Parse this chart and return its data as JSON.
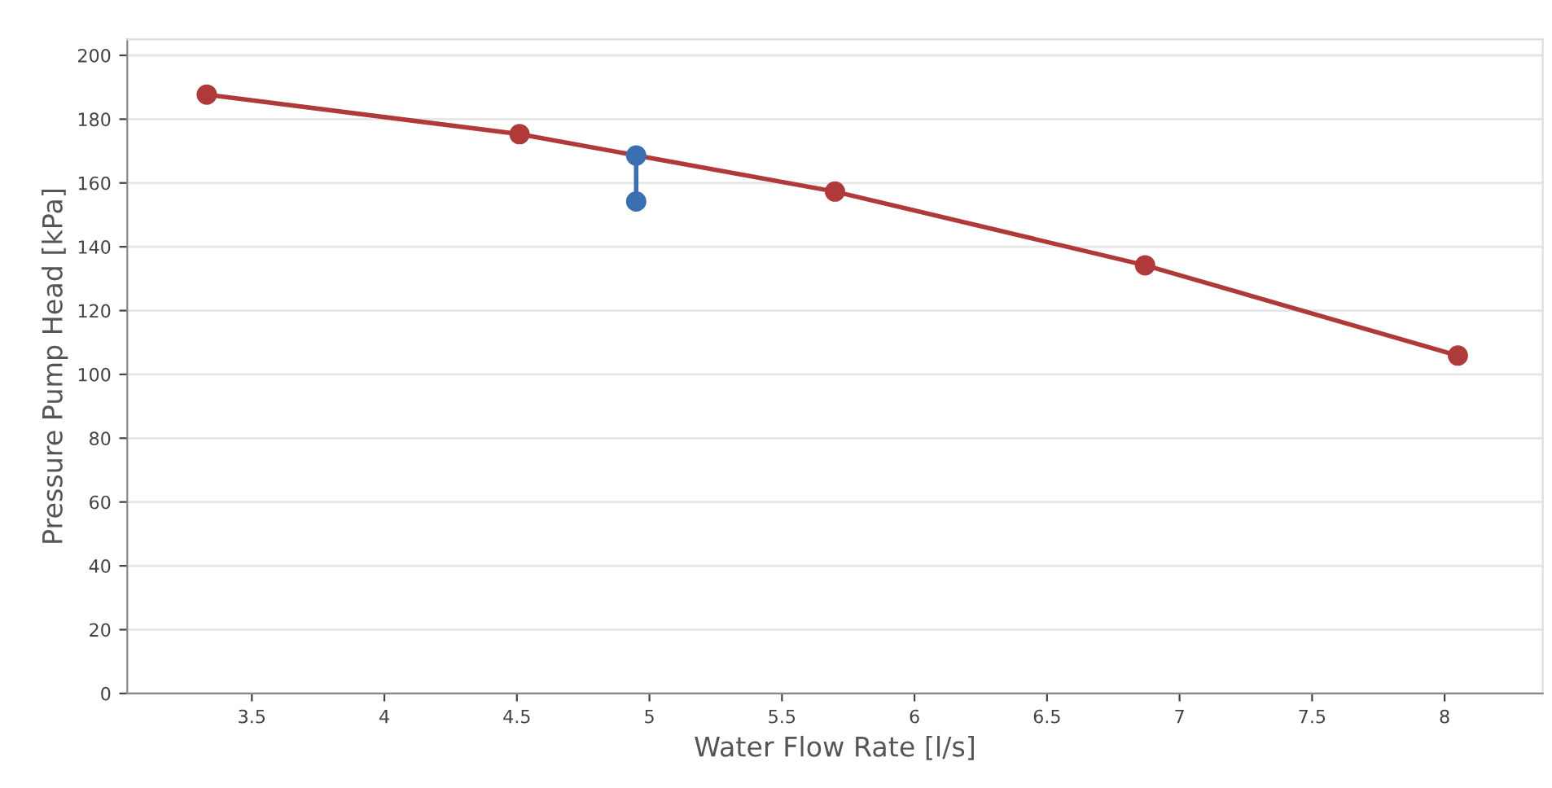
{
  "chart_data": {
    "type": "line",
    "xlabel": "Water Flow Rate [l/s]",
    "ylabel": "Pressure Pump Head [kPa]",
    "xlim": [
      3.03,
      8.37
    ],
    "xticks": [
      3.5,
      4,
      4.5,
      5,
      5.5,
      6,
      6.5,
      7,
      7.5,
      8
    ],
    "ylim": [
      0,
      205
    ],
    "yticks": [
      0,
      20,
      40,
      60,
      80,
      100,
      120,
      140,
      160,
      180,
      200
    ],
    "grid": "y",
    "marker": "circle",
    "line_style": "solid",
    "series": [
      {
        "color": "#b03a3a",
        "x": [
          3.33,
          4.51,
          5.7,
          6.87,
          8.05
        ],
        "values": [
          187.7,
          175.3,
          157.3,
          134.2,
          105.9
        ]
      },
      {
        "color": "#3a6fb0",
        "x": [
          4.95,
          4.95
        ],
        "values": [
          168.6,
          154.2
        ]
      }
    ]
  }
}
